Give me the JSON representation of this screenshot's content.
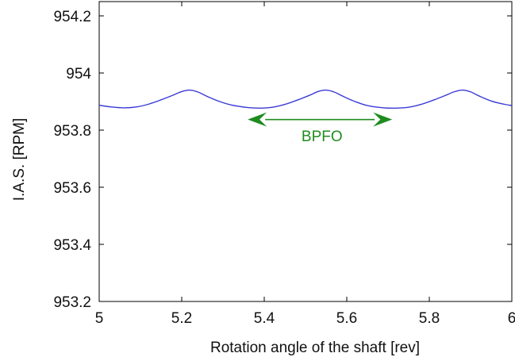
{
  "chart_data": {
    "type": "line",
    "title": "",
    "xlabel": "Rotation angle of the shaft [rev]",
    "ylabel": "I.A.S. [RPM]",
    "xlim": [
      5,
      6
    ],
    "ylim": [
      953.2,
      954.25
    ],
    "xticks": [
      5,
      5.2,
      5.4,
      5.6,
      5.8,
      6
    ],
    "xtick_labels": [
      "5",
      "5.2",
      "5.4",
      "5.6",
      "5.8",
      "6"
    ],
    "yticks": [
      953.2,
      953.4,
      953.6,
      953.8,
      954,
      954.2
    ],
    "ytick_labels": [
      "953.2",
      "953.4",
      "953.6",
      "953.8",
      "954",
      "954.2"
    ],
    "grid": false,
    "series": [
      {
        "color": "#3b3bd6",
        "x": [
          5.0,
          5.03,
          5.06,
          5.09,
          5.12,
          5.15,
          5.18,
          5.2,
          5.22,
          5.24,
          5.26,
          5.29,
          5.32,
          5.36,
          5.39,
          5.42,
          5.45,
          5.48,
          5.51,
          5.53,
          5.55,
          5.57,
          5.59,
          5.62,
          5.65,
          5.69,
          5.72,
          5.75,
          5.78,
          5.81,
          5.84,
          5.86,
          5.88,
          5.9,
          5.92,
          5.95,
          5.98,
          6.0
        ],
        "y": [
          953.887,
          953.881,
          953.878,
          953.881,
          953.891,
          953.906,
          953.923,
          953.935,
          953.94,
          953.933,
          953.919,
          953.901,
          953.888,
          953.879,
          953.877,
          953.88,
          953.89,
          953.905,
          953.922,
          953.935,
          953.94,
          953.933,
          953.919,
          953.9,
          953.886,
          953.878,
          953.877,
          953.88,
          953.89,
          953.905,
          953.922,
          953.934,
          953.94,
          953.934,
          953.92,
          953.902,
          953.891,
          953.886
        ]
      }
    ],
    "annotations": [
      {
        "text": "BPFO",
        "color": "#1e8c1e",
        "arrow": "double",
        "x_start": 5.36,
        "x_end": 5.71,
        "y": 953.837,
        "text_x": 5.54,
        "text_y": 953.78
      }
    ]
  }
}
